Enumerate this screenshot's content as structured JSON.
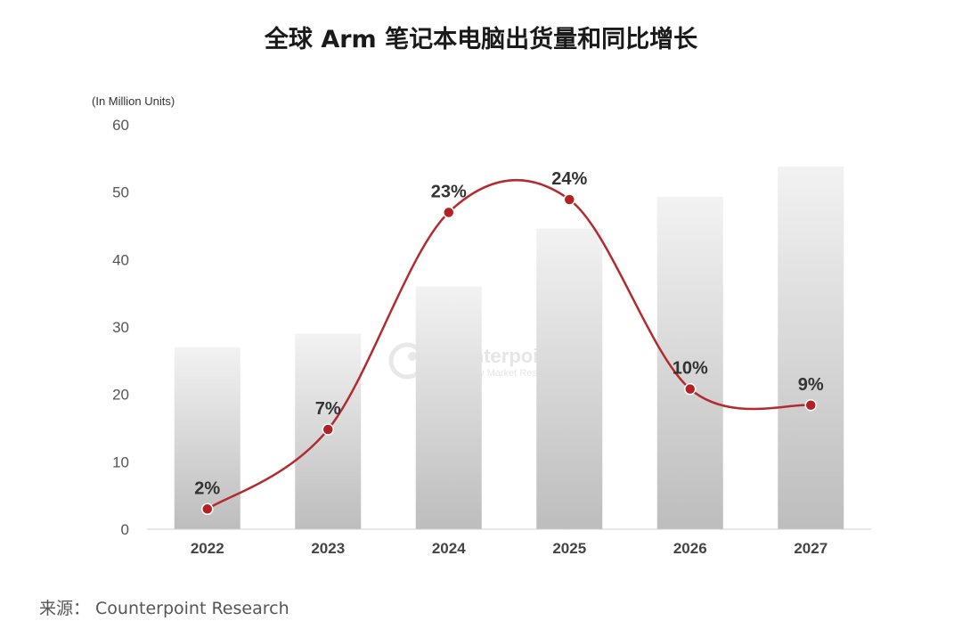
{
  "title": "全球 Arm 笔记本电脑出货量和同比增长",
  "source": "来源： Counterpoint Research",
  "watermark": {
    "name": "Counterpoint",
    "tagline": "Technology Market Research"
  },
  "chart_data": {
    "type": "bar",
    "categories": [
      "2022",
      "2023",
      "2024",
      "2025",
      "2026",
      "2027"
    ],
    "unit_label": "(In Million Units)",
    "ylim": [
      0,
      60
    ],
    "yticks": [
      0,
      10,
      20,
      30,
      40,
      50,
      60
    ],
    "series": [
      {
        "values": [
          27,
          29,
          36,
          44.6,
          49.3,
          53.8
        ]
      },
      {
        "values": [
          3,
          14.8,
          47,
          48.9,
          20.8,
          18.4
        ],
        "labels": [
          "2%",
          "7%",
          "23%",
          "24%",
          "10%",
          "9%"
        ]
      }
    ],
    "grid": false,
    "colors": {
      "bar_top": "#f2f2f2",
      "bar_bottom": "#bdbdbd",
      "line": "#b22b2f",
      "point": "#b22225"
    }
  }
}
